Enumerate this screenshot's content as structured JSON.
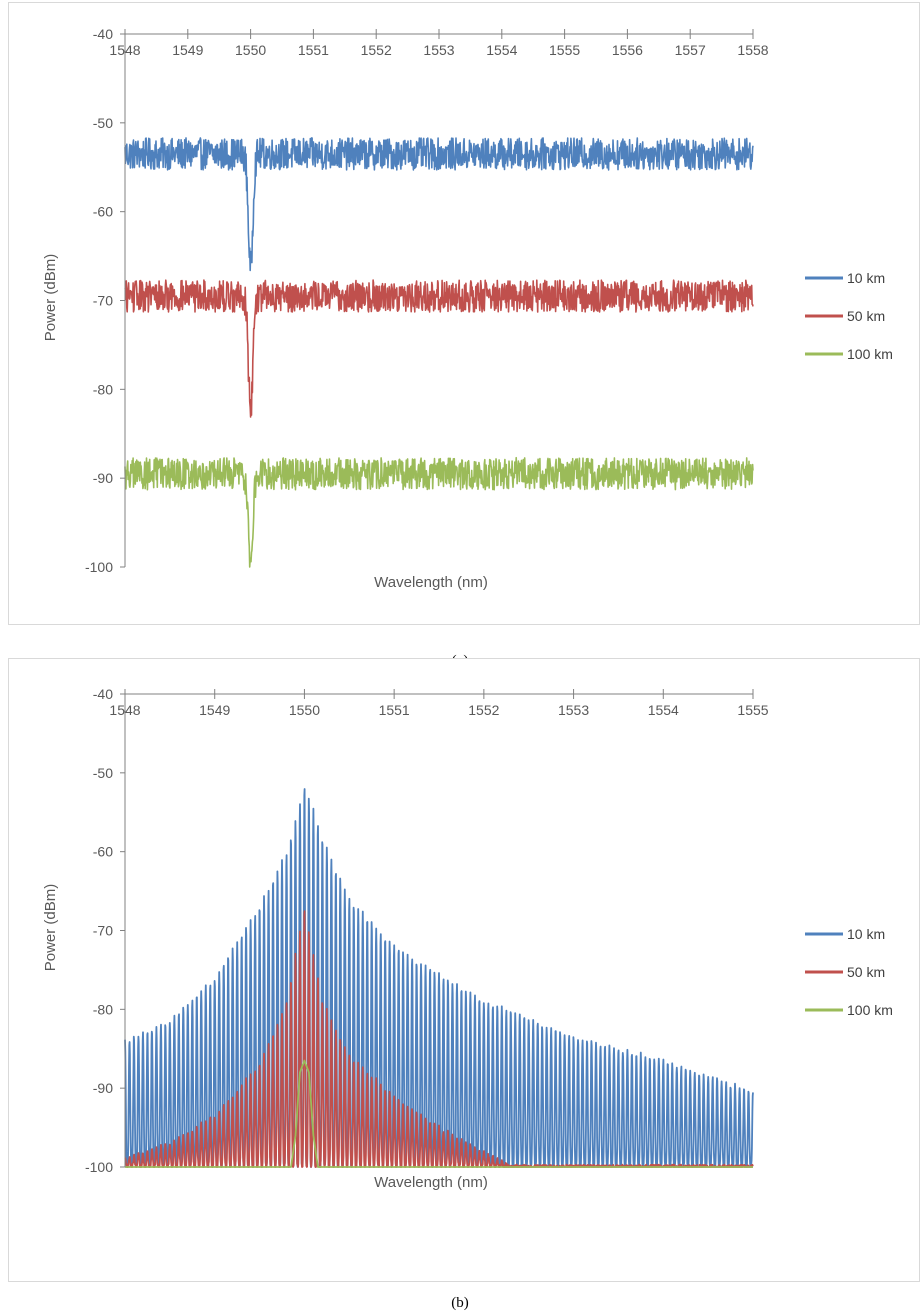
{
  "chart_data": [
    {
      "id": "a",
      "type": "line",
      "xlabel": "Wavelength (nm)",
      "ylabel": "Power (dBm)",
      "xlim": [
        1548,
        1558
      ],
      "ylim": [
        -100,
        -40
      ],
      "x_axis_position": "top",
      "xticks": [
        "1548",
        "1549",
        "1550",
        "1551",
        "1552",
        "1553",
        "1554",
        "1555",
        "1556",
        "1557",
        "1558"
      ],
      "yticks": [
        "-40",
        "-50",
        "-60",
        "-70",
        "-80",
        "-90",
        "-100"
      ],
      "grid": false,
      "legend_position": "right",
      "series": [
        {
          "name": "10 km",
          "color": "#4F81BD",
          "baseline": -53.5,
          "noise": 1.8,
          "notch_center": 1550.0,
          "notch_min": -66.5,
          "notch_width": 0.05,
          "x": [
            1548,
            1549,
            1549.9,
            1550.0,
            1550.1,
            1551,
            1552,
            1553,
            1554,
            1555,
            1556,
            1557,
            1558
          ],
          "y": [
            -53.5,
            -53.5,
            -54.5,
            -66.5,
            -54,
            -53.5,
            -53.5,
            -53.5,
            -53.5,
            -53.5,
            -53.5,
            -53.5,
            -53.5
          ]
        },
        {
          "name": "50 km",
          "color": "#C0504D",
          "baseline": -69.5,
          "noise": 1.8,
          "notch_center": 1550.0,
          "notch_min": -82.5,
          "notch_width": 0.05,
          "x": [
            1548,
            1549,
            1549.9,
            1550.0,
            1550.1,
            1551,
            1552,
            1553,
            1554,
            1555,
            1556,
            1557,
            1558
          ],
          "y": [
            -69.5,
            -69.5,
            -70.5,
            -82.5,
            -70,
            -69.5,
            -69.5,
            -69.5,
            -69.5,
            -69.5,
            -69.5,
            -69.5,
            -69.5
          ]
        },
        {
          "name": "100 km",
          "color": "#9BBB59",
          "baseline": -89.5,
          "noise": 1.8,
          "notch_center": 1550.0,
          "notch_min": -100,
          "notch_width": 0.05,
          "x": [
            1548,
            1549,
            1549.9,
            1550.0,
            1550.1,
            1551,
            1552,
            1553,
            1554,
            1555,
            1556,
            1557,
            1558
          ],
          "y": [
            -89.5,
            -89.5,
            -90.5,
            -100,
            -90,
            -89.5,
            -89.5,
            -89.5,
            -89.5,
            -89.5,
            -89.5,
            -89.5,
            -89.5
          ]
        }
      ]
    },
    {
      "id": "b",
      "type": "line",
      "xlabel": "Wavelength (nm)",
      "ylabel": "Power (dBm)",
      "xlim": [
        1548,
        1555
      ],
      "ylim": [
        -100,
        -40
      ],
      "x_axis_position": "top",
      "xticks": [
        "1548",
        "1549",
        "1550",
        "1551",
        "1552",
        "1553",
        "1554",
        "1555"
      ],
      "yticks": [
        "-40",
        "-50",
        "-60",
        "-70",
        "-80",
        "-90",
        "-100"
      ],
      "grid": false,
      "legend_position": "right",
      "series": [
        {
          "name": "10 km",
          "color": "#4F81BD",
          "peak_center": 1550.0,
          "peak": -51.5,
          "mode_spacing": 0.05,
          "envelope_x": [
            1548,
            1548.5,
            1549,
            1549.5,
            1549.8,
            1550.0,
            1550.2,
            1550.5,
            1551,
            1552,
            1553,
            1554,
            1555
          ],
          "envelope_y": [
            -84,
            -81.5,
            -76,
            -67,
            -60,
            -51.5,
            -58,
            -66,
            -72,
            -79,
            -83.5,
            -86.5,
            -90.5
          ]
        },
        {
          "name": "50 km",
          "color": "#C0504D",
          "peak_center": 1550.0,
          "peak": -67,
          "mode_spacing": 0.05,
          "envelope_x": [
            1548,
            1548.5,
            1549,
            1549.5,
            1549.8,
            1550.0,
            1550.2,
            1550.5,
            1551,
            1551.5,
            1552.3,
            1555
          ],
          "envelope_y": [
            -99,
            -97,
            -93.5,
            -87,
            -79,
            -67,
            -79,
            -86,
            -91,
            -95,
            -100,
            -100
          ]
        },
        {
          "name": "100 km",
          "color": "#9BBB59",
          "peak_center": 1550.0,
          "peak": -86.5,
          "x": [
            1548,
            1549.85,
            1549.9,
            1549.95,
            1550.0,
            1550.05,
            1550.1,
            1550.15,
            1555
          ],
          "y": [
            -100,
            -100,
            -96,
            -88,
            -86.5,
            -88,
            -96,
            -100,
            -100
          ]
        }
      ]
    }
  ],
  "captions": {
    "a": "(a)",
    "b": "(b)"
  }
}
